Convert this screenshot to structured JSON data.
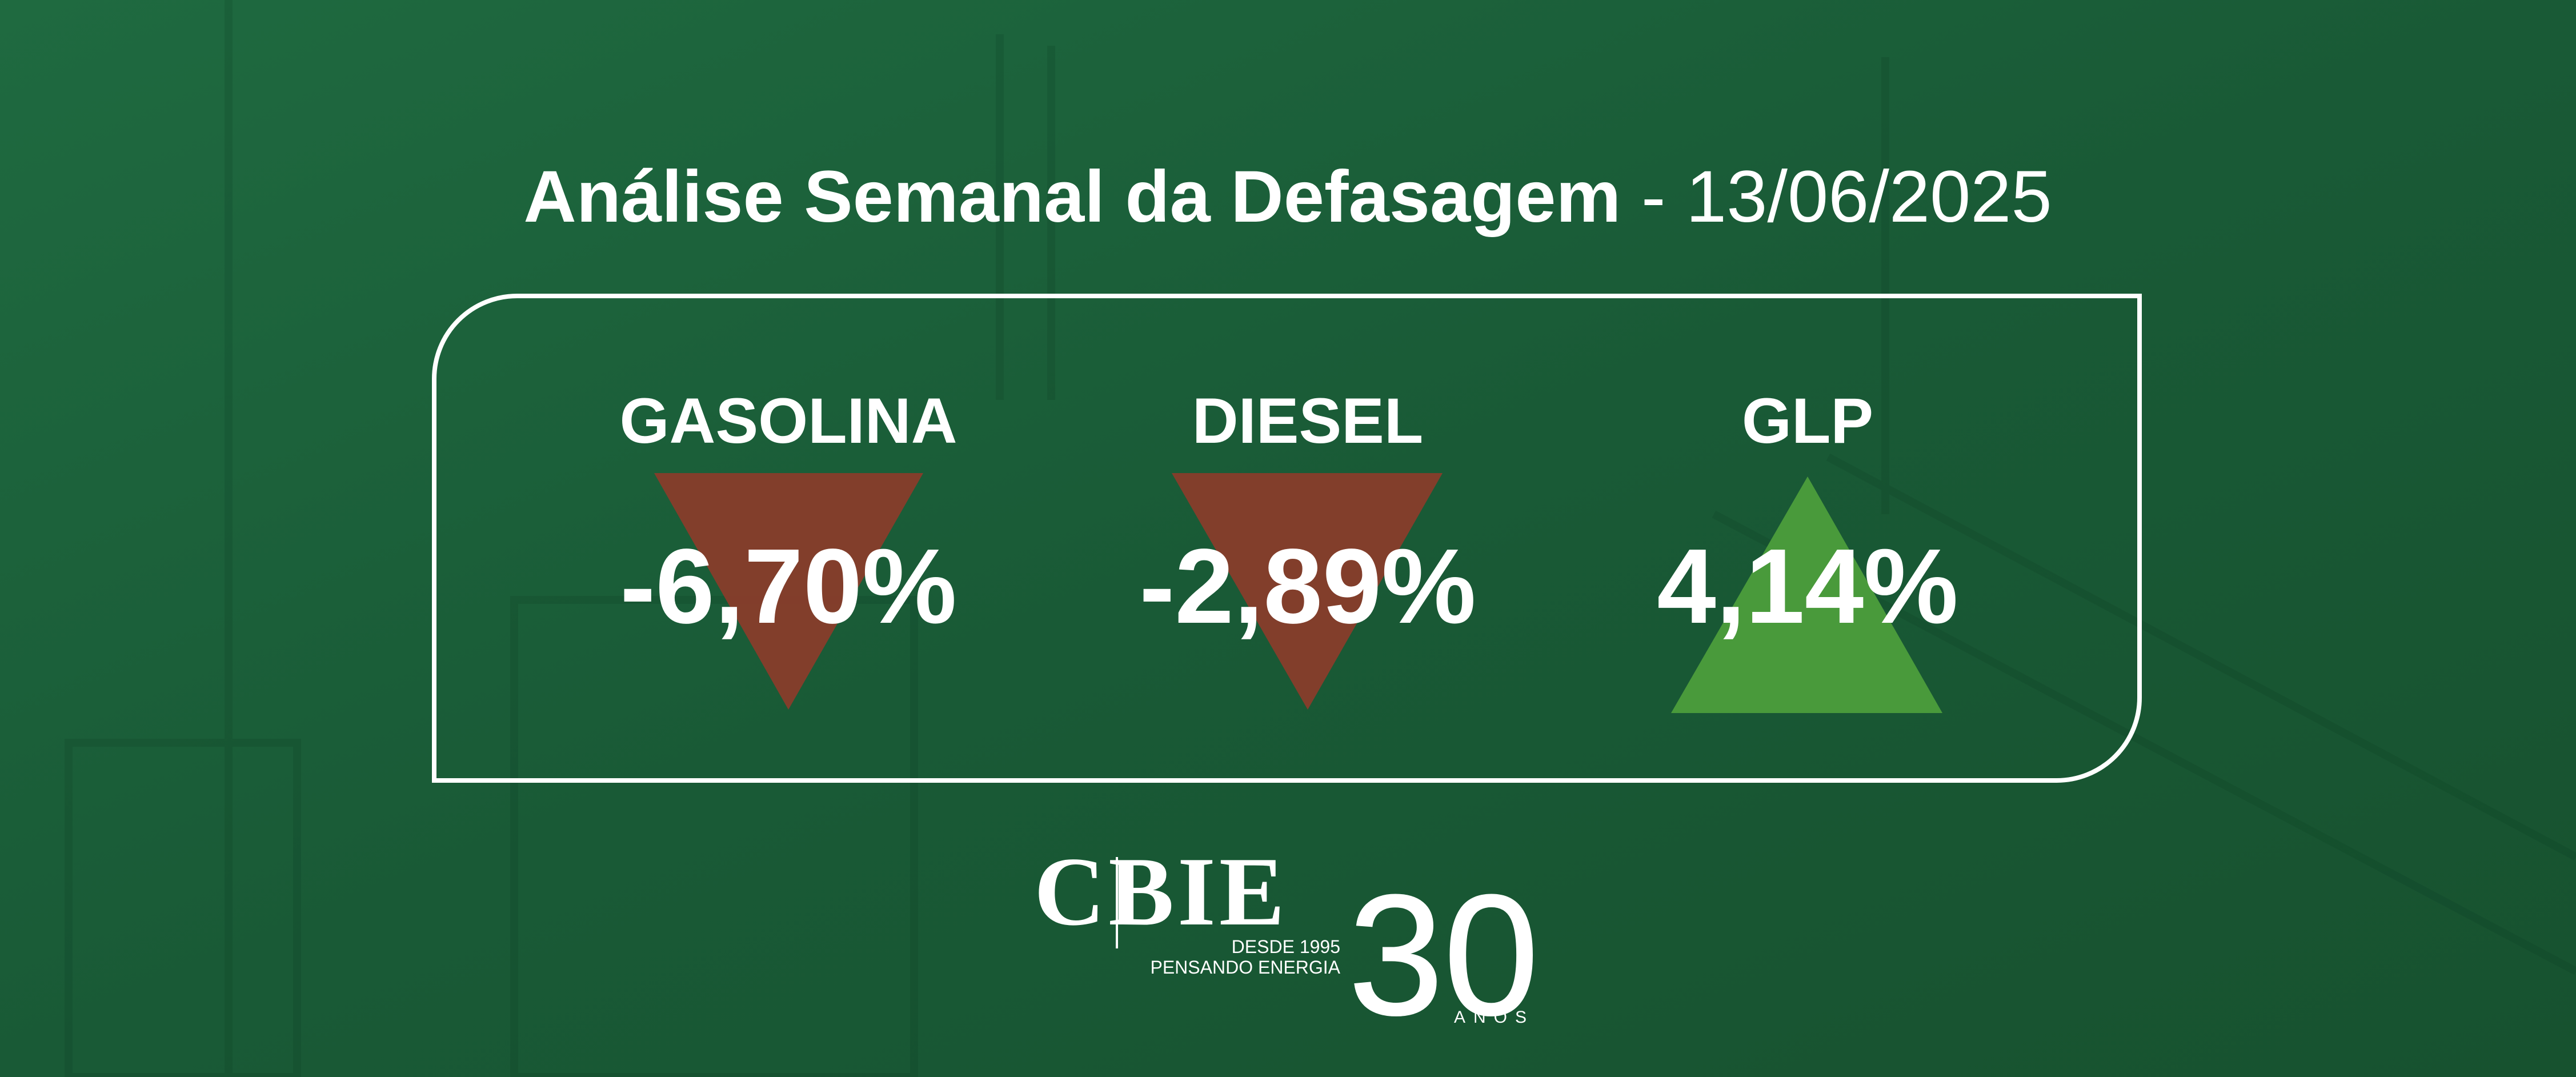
{
  "header": {
    "title": "Análise Semanal da Defasagem",
    "separator": "-",
    "date": "13/06/2025"
  },
  "items": [
    {
      "label": "GASOLINA",
      "value": "-6,70%"
    },
    {
      "label": "DIESEL",
      "value": "-2,89%"
    },
    {
      "label": "GLP",
      "value": "4,14%"
    }
  ],
  "logo": {
    "name": "CBIE",
    "since": "DESDE 1995",
    "tagline": "PENSANDO ENERGIA",
    "number": "30",
    "suffix": "ANOS"
  }
}
